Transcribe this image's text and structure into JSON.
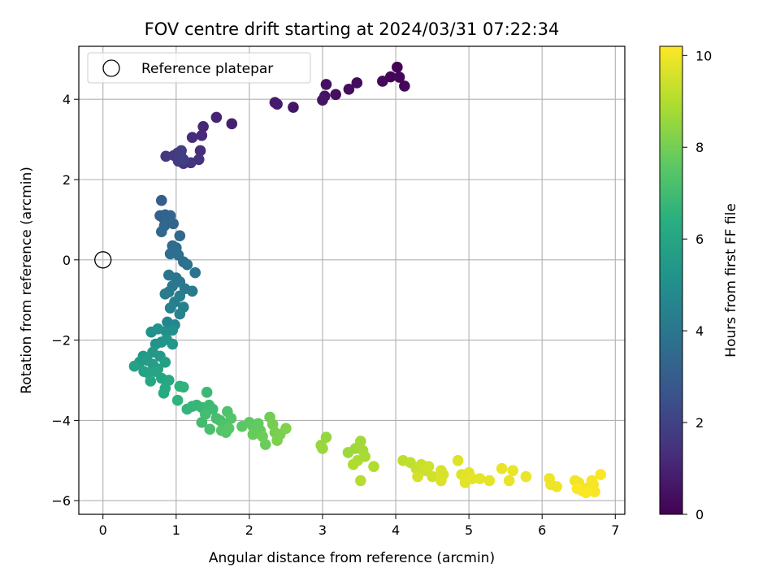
{
  "chart_data": {
    "type": "scatter",
    "title": "FOV centre drift starting at 2024/03/31 07:22:34",
    "xlabel": "Angular distance from reference (arcmin)",
    "ylabel": "Rotation from reference (arcmin)",
    "xlim": [
      -0.33,
      7.13
    ],
    "ylim": [
      -6.34,
      5.32
    ],
    "xticks": [
      0,
      1,
      2,
      3,
      4,
      5,
      6,
      7
    ],
    "yticks": [
      -6,
      -4,
      -2,
      0,
      2,
      4
    ],
    "grid": true,
    "legend": {
      "position": "top-left",
      "entries": [
        "Reference platepar"
      ]
    },
    "reference_point": {
      "x": 0,
      "y": 0
    },
    "colorbar": {
      "label": "Hours from first FF file",
      "colormap": "viridis",
      "range": [
        0,
        10.2
      ],
      "ticks": [
        0,
        2,
        4,
        6,
        8,
        10
      ]
    },
    "points": [
      [
        4.02,
        4.8,
        0.05
      ],
      [
        3.93,
        4.56,
        0.1
      ],
      [
        4.05,
        4.55,
        0.15
      ],
      [
        4.12,
        4.33,
        0.2
      ],
      [
        3.82,
        4.45,
        0.25
      ],
      [
        3.47,
        4.41,
        0.3
      ],
      [
        3.36,
        4.25,
        0.35
      ],
      [
        3.18,
        4.12,
        0.4
      ],
      [
        3.05,
        4.37,
        0.45
      ],
      [
        3.03,
        4.08,
        0.5
      ],
      [
        3.0,
        3.98,
        0.55
      ],
      [
        2.6,
        3.8,
        0.6
      ],
      [
        2.35,
        3.92,
        0.7
      ],
      [
        2.38,
        3.88,
        0.75
      ],
      [
        1.76,
        3.39,
        0.9
      ],
      [
        1.55,
        3.55,
        1.0
      ],
      [
        1.37,
        3.32,
        1.1
      ],
      [
        1.35,
        3.1,
        1.2
      ],
      [
        1.22,
        3.05,
        1.25
      ],
      [
        1.33,
        2.72,
        1.3
      ],
      [
        1.31,
        2.5,
        1.4
      ],
      [
        1.2,
        2.42,
        1.5
      ],
      [
        1.1,
        2.4,
        1.55
      ],
      [
        1.06,
        2.6,
        1.6
      ],
      [
        0.86,
        2.58,
        1.65
      ],
      [
        0.97,
        2.6,
        1.7
      ],
      [
        1.03,
        2.46,
        1.75
      ],
      [
        1.02,
        2.66,
        1.8
      ],
      [
        1.07,
        2.72,
        1.85
      ],
      [
        1.1,
        2.5,
        1.9
      ],
      [
        0.8,
        1.48,
        3.0
      ],
      [
        0.78,
        1.1,
        3.1
      ],
      [
        0.82,
        1.05,
        3.15
      ],
      [
        0.85,
        1.12,
        3.2
      ],
      [
        0.92,
        1.1,
        3.25
      ],
      [
        0.88,
        1.0,
        3.3
      ],
      [
        0.96,
        0.9,
        3.35
      ],
      [
        0.84,
        0.85,
        3.4
      ],
      [
        0.8,
        0.7,
        3.45
      ],
      [
        1.05,
        0.6,
        3.5
      ],
      [
        0.95,
        0.35,
        3.55
      ],
      [
        1.0,
        0.3,
        3.6
      ],
      [
        0.92,
        0.15,
        3.65
      ],
      [
        1.03,
        0.12,
        3.7
      ],
      [
        1.1,
        -0.05,
        3.75
      ],
      [
        1.15,
        -0.12,
        3.8
      ],
      [
        1.26,
        -0.32,
        3.85
      ],
      [
        0.9,
        -0.38,
        3.9
      ],
      [
        1.0,
        -0.45,
        3.95
      ],
      [
        1.05,
        -0.55,
        4.0
      ],
      [
        0.95,
        -0.65,
        4.05
      ],
      [
        1.12,
        -0.72,
        4.1
      ],
      [
        1.22,
        -0.78,
        4.15
      ],
      [
        0.9,
        -0.8,
        4.2
      ],
      [
        0.85,
        -0.85,
        4.25
      ],
      [
        1.05,
        -0.9,
        4.3
      ],
      [
        0.98,
        -1.05,
        4.35
      ],
      [
        0.92,
        -1.2,
        4.4
      ],
      [
        1.1,
        -1.18,
        4.45
      ],
      [
        1.05,
        -1.35,
        4.5
      ],
      [
        0.88,
        -1.55,
        4.6
      ],
      [
        0.98,
        -1.62,
        4.7
      ],
      [
        0.95,
        -1.75,
        5.0
      ],
      [
        0.86,
        -1.78,
        5.05
      ],
      [
        0.66,
        -1.8,
        5.1
      ],
      [
        0.75,
        -1.72,
        5.15
      ],
      [
        0.72,
        -2.1,
        5.2
      ],
      [
        0.8,
        -2.05,
        5.25
      ],
      [
        0.87,
        -1.98,
        5.3
      ],
      [
        0.95,
        -2.1,
        5.35
      ],
      [
        0.68,
        -2.3,
        5.4
      ],
      [
        0.78,
        -2.4,
        5.45
      ],
      [
        0.55,
        -2.4,
        5.5
      ],
      [
        0.5,
        -2.55,
        5.55
      ],
      [
        0.6,
        -2.5,
        5.6
      ],
      [
        0.68,
        -2.6,
        5.65
      ],
      [
        0.85,
        -2.55,
        5.7
      ],
      [
        0.75,
        -2.72,
        5.75
      ],
      [
        0.43,
        -2.65,
        5.8
      ],
      [
        0.56,
        -2.78,
        5.85
      ],
      [
        0.62,
        -2.82,
        5.9
      ],
      [
        0.72,
        -2.78,
        5.95
      ],
      [
        0.8,
        -2.95,
        6.0
      ],
      [
        0.65,
        -3.02,
        6.05
      ],
      [
        0.9,
        -3.0,
        6.1
      ],
      [
        0.85,
        -3.2,
        6.15
      ],
      [
        0.83,
        -3.32,
        6.2
      ],
      [
        1.05,
        -3.15,
        6.5
      ],
      [
        1.1,
        -3.17,
        6.55
      ],
      [
        1.02,
        -3.5,
        6.6
      ],
      [
        1.15,
        -3.72,
        6.65
      ],
      [
        1.22,
        -3.65,
        6.7
      ],
      [
        1.28,
        -3.62,
        6.75
      ],
      [
        1.35,
        -3.68,
        6.8
      ],
      [
        1.42,
        -3.3,
        6.85
      ],
      [
        1.45,
        -3.62,
        6.9
      ],
      [
        1.5,
        -3.72,
        6.95
      ],
      [
        1.35,
        -4.05,
        7.0
      ],
      [
        1.4,
        -3.85,
        7.05
      ],
      [
        1.55,
        -3.95,
        7.1
      ],
      [
        1.6,
        -4.0,
        7.15
      ],
      [
        1.46,
        -4.22,
        7.2
      ],
      [
        1.65,
        -4.1,
        7.25
      ],
      [
        1.7,
        -3.78,
        7.3
      ],
      [
        1.75,
        -3.95,
        7.35
      ],
      [
        1.62,
        -4.25,
        7.4
      ],
      [
        1.68,
        -4.3,
        7.45
      ],
      [
        1.72,
        -4.2,
        7.5
      ],
      [
        1.9,
        -4.15,
        7.55
      ],
      [
        2.0,
        -4.05,
        7.6
      ],
      [
        2.05,
        -4.15,
        7.65
      ],
      [
        2.12,
        -4.08,
        7.7
      ],
      [
        2.15,
        -4.25,
        7.75
      ],
      [
        2.05,
        -4.35,
        7.8
      ],
      [
        2.22,
        -4.6,
        7.85
      ],
      [
        2.18,
        -4.4,
        7.9
      ],
      [
        2.28,
        -3.92,
        7.95
      ],
      [
        2.32,
        -4.1,
        8.0
      ],
      [
        2.35,
        -4.3,
        8.05
      ],
      [
        2.42,
        -4.35,
        8.1
      ],
      [
        2.38,
        -4.5,
        8.15
      ],
      [
        2.5,
        -4.2,
        8.2
      ],
      [
        3.05,
        -4.42,
        8.5
      ],
      [
        2.98,
        -4.62,
        8.55
      ],
      [
        3.0,
        -4.7,
        8.6
      ],
      [
        3.35,
        -4.8,
        8.65
      ],
      [
        3.45,
        -4.7,
        8.7
      ],
      [
        3.52,
        -4.52,
        8.75
      ],
      [
        3.55,
        -4.75,
        8.8
      ],
      [
        3.58,
        -4.9,
        8.85
      ],
      [
        3.48,
        -5.0,
        8.9
      ],
      [
        3.42,
        -5.1,
        8.95
      ],
      [
        3.7,
        -5.15,
        9.0
      ],
      [
        3.52,
        -5.5,
        9.05
      ],
      [
        4.1,
        -5.0,
        9.2
      ],
      [
        4.2,
        -5.05,
        9.25
      ],
      [
        4.28,
        -5.2,
        9.3
      ],
      [
        4.35,
        -5.1,
        9.35
      ],
      [
        4.4,
        -5.25,
        9.4
      ],
      [
        4.45,
        -5.15,
        9.45
      ],
      [
        4.5,
        -5.4,
        9.5
      ],
      [
        4.3,
        -5.4,
        9.55
      ],
      [
        4.62,
        -5.25,
        9.6
      ],
      [
        4.65,
        -5.35,
        9.62
      ],
      [
        4.62,
        -5.5,
        9.65
      ],
      [
        4.85,
        -5.0,
        9.68
      ],
      [
        4.9,
        -5.35,
        9.7
      ],
      [
        4.95,
        -5.4,
        9.72
      ],
      [
        5.0,
        -5.3,
        9.75
      ],
      [
        4.95,
        -5.55,
        9.78
      ],
      [
        5.05,
        -5.45,
        9.8
      ],
      [
        5.15,
        -5.45,
        9.82
      ],
      [
        5.28,
        -5.5,
        9.84
      ],
      [
        5.45,
        -5.2,
        9.86
      ],
      [
        5.55,
        -5.5,
        9.88
      ],
      [
        5.6,
        -5.25,
        9.9
      ],
      [
        5.78,
        -5.4,
        9.92
      ],
      [
        6.1,
        -5.45,
        9.94
      ],
      [
        6.12,
        -5.6,
        9.96
      ],
      [
        6.2,
        -5.65,
        9.98
      ],
      [
        6.45,
        -5.5,
        10.0
      ],
      [
        6.5,
        -5.55,
        10.02
      ],
      [
        6.55,
        -5.75,
        10.04
      ],
      [
        6.62,
        -5.68,
        10.06
      ],
      [
        6.68,
        -5.5,
        10.08
      ],
      [
        6.7,
        -5.6,
        10.1
      ],
      [
        6.72,
        -5.78,
        10.12
      ],
      [
        6.8,
        -5.35,
        10.14
      ],
      [
        6.48,
        -5.7,
        10.15
      ],
      [
        6.6,
        -5.8,
        10.16
      ]
    ]
  }
}
